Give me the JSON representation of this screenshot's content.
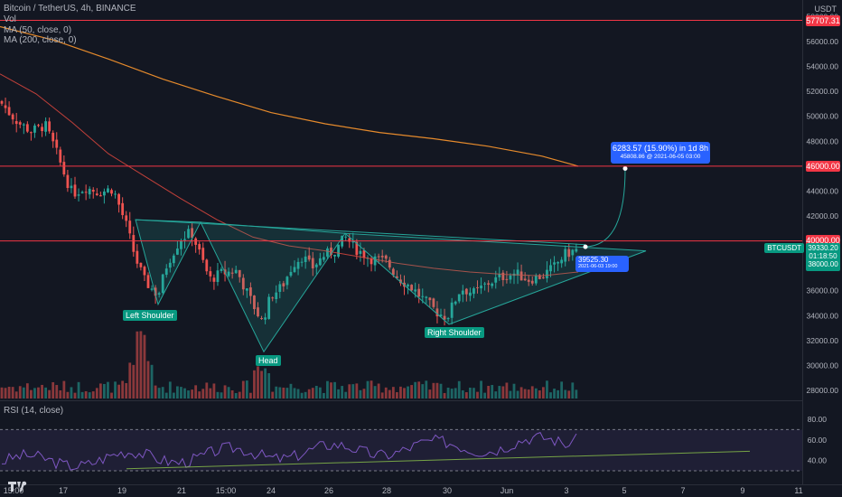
{
  "header": {
    "title": "Bitcoin / TetherUS, 4h, BINANCE",
    "vol_label": "Vol",
    "ma50_label": "MA (50, close, 0)",
    "ma200_label": "MA (200, close, 0)",
    "rsi_label": "RSI (14, close)",
    "currency": "USDT"
  },
  "price_tags": {
    "level_57707": "57707.31",
    "level_46000": "46000.00",
    "level_40000": "40000.00",
    "symbol": "BTCUSDT",
    "last_price": "39330.20",
    "countdown": "01:18:50",
    "sub_price": "38000.00"
  },
  "annotations": {
    "target_line1": "6283.57 (15.90%) in 1d 8h",
    "target_line2": "45808.86 @ 2021-06-05  03:00",
    "entry_line1": "39525.30",
    "entry_line2": "2021-06-03 19:00",
    "left_shoulder": "Left Shoulder",
    "head": "Head",
    "right_shoulder": "Right Shoulder"
  },
  "colors": {
    "background": "#131722",
    "up": "#26a69a",
    "down": "#ef5350",
    "ma50": "#e0483e",
    "ma200": "#e58a2c",
    "resistance": "#f23645",
    "pattern": "#26a69a",
    "rsi_line": "#7e57c2",
    "callout": "#2962ff"
  },
  "chart_data": {
    "type": "candlestick",
    "symbol": "BTCUSDT",
    "timeframe": "4h",
    "exchange": "BINANCE",
    "y_axis": {
      "ticks": [
        28000,
        30000,
        32000,
        34000,
        36000,
        38000,
        40000,
        42000,
        44000,
        46000,
        48000,
        50000,
        52000,
        54000,
        56000,
        58000
      ],
      "range": [
        27000,
        58500
      ]
    },
    "x_axis": {
      "tick_labels": [
        "15:00",
        "17",
        "19",
        "21",
        "15:00",
        "24",
        "26",
        "28",
        "30",
        "Jun",
        "3",
        "5",
        "7",
        "9",
        "11"
      ]
    },
    "horizontal_levels": [
      57707.31,
      46000.0,
      40000.0
    ],
    "last_price": 39330.2,
    "inverse_head_and_shoulders": {
      "left_shoulder_low": 34900,
      "head_low": 31100,
      "right_shoulder_low": 33300,
      "neckline": [
        [
          0,
          41700
        ],
        [
          1,
          39600
        ]
      ]
    },
    "projection": {
      "entry": 39525.3,
      "entry_time": "2021-06-03 19:00",
      "target": 45808.86,
      "target_time": "2021-06-05 03:00",
      "change": 6283.57,
      "change_pct": 15.9,
      "duration": "1d 8h"
    },
    "rsi": {
      "period": 14,
      "ticks": [
        40.0,
        60.0,
        80.0
      ],
      "bands": [
        30,
        70
      ],
      "last": 66
    }
  }
}
